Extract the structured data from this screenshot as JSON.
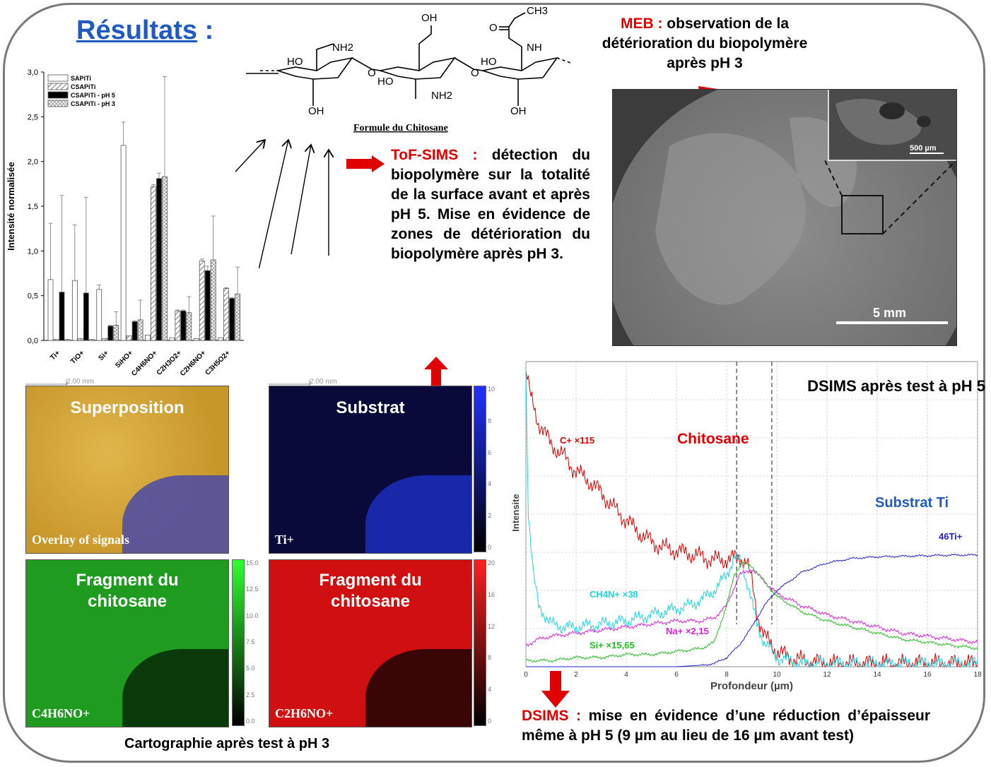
{
  "title": {
    "main": "Résultats",
    "colon": " :"
  },
  "chitosan": {
    "caption": "Formule du Chitosane",
    "groups": [
      "HO",
      "NH2",
      "OH",
      "O",
      "HO",
      "NH2",
      "OH",
      "O",
      "HO",
      "NH",
      "O",
      "CH3",
      "OH"
    ]
  },
  "tof_note": {
    "lead": "ToF-SIMS :",
    "body": " détection du biopolymère sur la totalité de la surface avant et après pH 5. Mise en évidence de zones de détérioration du biopolymère après pH 3."
  },
  "meb_note": {
    "lead": "MEB :",
    "body": " observation de la détérioration du biopolymère après pH 3"
  },
  "sem": {
    "inset_scale": "500 µm",
    "main_scale": "5 mm"
  },
  "maps": {
    "scale_text": "2.00 mm",
    "items": [
      {
        "label": "Superposition",
        "ion": "Overlay of signals"
      },
      {
        "label": "Substrat",
        "ion": "Ti+"
      },
      {
        "label_line1": "Fragment du",
        "label_line2": "chitosane",
        "ion": "C4H6NO+"
      },
      {
        "label_line1": "Fragment du",
        "label_line2": "chitosane",
        "ion": "C2H6NO+"
      }
    ],
    "colorbars": [
      {
        "ticks": [
          "10",
          "8",
          "6",
          "4",
          "2",
          "0"
        ]
      },
      {
        "ticks": [
          "15.0",
          "12.5",
          "10.0",
          "7.5",
          "5.0",
          "2.5",
          "0.0"
        ]
      },
      {
        "ticks": [
          "20",
          "16",
          "12",
          "8",
          "4",
          "0"
        ]
      }
    ],
    "caption": "Cartographie après test à pH 3"
  },
  "dsims_note": {
    "lead": "DSIMS :",
    "body": " mise en évidence d’une réduction d’épaisseur même à pH 5 (9 µm au lieu de 16 µm avant test)"
  },
  "colors": {
    "red": "#e00000",
    "blue": "#1f5bc2",
    "c": "#e00000",
    "cn": "#1ad6e6",
    "na": "#e020e0",
    "si": "#20c020",
    "ti": "#2020d0"
  },
  "chart_data": [
    {
      "type": "bar",
      "title": "",
      "xlabel": "",
      "ylabel": "Intensité normalisée",
      "ylim": [
        0,
        3.0
      ],
      "yticks": [
        "0,0",
        "0,5",
        "1,0",
        "1,5",
        "2,0",
        "2,5",
        "3,0"
      ],
      "categories": [
        "Ti+",
        "TiO+",
        "Si+",
        "SiHO+",
        "C4H6NO+",
        "C2H3O2+",
        "C2H6NO+",
        "C3H5O2+"
      ],
      "series": [
        {
          "name": "SAPiTi",
          "values": [
            0.68,
            0.67,
            0.57,
            2.18,
            0.06,
            0.03,
            0.02,
            0.03
          ],
          "err": [
            0.63,
            0.62,
            0.05,
            0.26,
            0.0,
            0.0,
            0.0,
            0.0
          ]
        },
        {
          "name": "CSAPiTi",
          "values": [
            0.01,
            0.02,
            0.02,
            0.05,
            1.72,
            0.33,
            0.89,
            0.58
          ],
          "err": [
            0.0,
            0.0,
            0.0,
            0.0,
            0.02,
            0.01,
            0.02,
            0.01
          ]
        },
        {
          "name": "CSAPiTi - pH 5",
          "values": [
            0.54,
            0.53,
            0.16,
            0.21,
            1.81,
            0.33,
            0.78,
            0.47
          ],
          "err": [
            1.08,
            1.07,
            0.01,
            0.01,
            0.06,
            0.01,
            0.05,
            0.01
          ]
        },
        {
          "name": "CSAPiTi - pH 3",
          "values": [
            0.01,
            0.01,
            0.17,
            0.23,
            1.83,
            0.31,
            0.9,
            0.52
          ],
          "err": [
            0.0,
            0.0,
            0.15,
            0.22,
            1.12,
            0.18,
            0.49,
            0.3
          ]
        }
      ],
      "legend": "top-left"
    },
    {
      "type": "line",
      "title": "DSIMS après test à pH 5",
      "xlabel": "Profondeur (µm)",
      "ylabel": "Intensite",
      "xlim": [
        0,
        18
      ],
      "xticks": [
        "0",
        "2",
        "4",
        "6",
        "8",
        "10",
        "12",
        "14",
        "16",
        "18"
      ],
      "ylim": [
        0,
        1
      ],
      "grid": true,
      "vlines": [
        8.4,
        9.8
      ],
      "annotations": {
        "chitosan": "Chitosane",
        "substrate": "Substrat Ti"
      },
      "series": [
        {
          "name": "C+ ×115",
          "color": "#e00000",
          "x": [
            0,
            0.2,
            0.5,
            1,
            1.5,
            2,
            2.5,
            3,
            3.5,
            4,
            4.5,
            5,
            5.5,
            6,
            6.5,
            7,
            7.5,
            8,
            8.5,
            8.8,
            9,
            9.2,
            9.5,
            10,
            10.5,
            11,
            12,
            14,
            16,
            18
          ],
          "y": [
            0.97,
            0.88,
            0.8,
            0.73,
            0.69,
            0.64,
            0.61,
            0.57,
            0.52,
            0.48,
            0.44,
            0.41,
            0.39,
            0.38,
            0.37,
            0.36,
            0.35,
            0.35,
            0.36,
            0.34,
            0.28,
            0.18,
            0.1,
            0.05,
            0.03,
            0.02,
            0.01,
            0.01,
            0.01,
            0.01
          ]
        },
        {
          "name": "CH4N+ ×38",
          "color": "#1ad6e6",
          "x": [
            0,
            0.1,
            0.3,
            0.5,
            1,
            1.5,
            2,
            3,
            4,
            5,
            6,
            6.5,
            7,
            7.5,
            8,
            8.3,
            8.6,
            8.9,
            9.2,
            9.5,
            10,
            10.5,
            11,
            12,
            14,
            16,
            18
          ],
          "y": [
            0.97,
            0.5,
            0.3,
            0.2,
            0.14,
            0.13,
            0.13,
            0.14,
            0.15,
            0.17,
            0.19,
            0.2,
            0.22,
            0.25,
            0.3,
            0.36,
            0.34,
            0.25,
            0.14,
            0.08,
            0.03,
            0.02,
            0.01,
            0.01,
            0.01,
            0.01,
            0.01
          ]
        },
        {
          "name": "Na+ ×2,15",
          "color": "#e020e0",
          "x": [
            0,
            0.5,
            1,
            2,
            3,
            4,
            5,
            6,
            7,
            7.5,
            8,
            8.5,
            9,
            9.5,
            10,
            11,
            12,
            13,
            14,
            15,
            16,
            17,
            18
          ],
          "y": [
            0.07,
            0.09,
            0.1,
            0.11,
            0.12,
            0.13,
            0.14,
            0.15,
            0.15,
            0.16,
            0.2,
            0.3,
            0.32,
            0.28,
            0.24,
            0.2,
            0.17,
            0.15,
            0.13,
            0.11,
            0.1,
            0.09,
            0.08
          ]
        },
        {
          "name": "Si+ ×15,65",
          "color": "#20c020",
          "x": [
            0,
            1,
            2,
            3,
            4,
            5,
            6,
            7,
            7.5,
            8,
            8.3,
            8.6,
            9,
            9.5,
            10,
            11,
            12,
            13,
            14,
            15,
            16,
            17,
            18
          ],
          "y": [
            0.02,
            0.02,
            0.03,
            0.03,
            0.04,
            0.04,
            0.05,
            0.06,
            0.08,
            0.2,
            0.3,
            0.34,
            0.33,
            0.28,
            0.23,
            0.18,
            0.15,
            0.13,
            0.11,
            0.09,
            0.08,
            0.07,
            0.06
          ]
        },
        {
          "name": "46Ti+",
          "color": "#2020d0",
          "x": [
            0,
            6,
            7,
            7.5,
            8,
            8.5,
            9,
            9.5,
            10,
            10.5,
            11,
            12,
            13,
            14,
            15,
            16,
            17,
            18
          ],
          "y": [
            0,
            0,
            0.005,
            0.01,
            0.03,
            0.07,
            0.13,
            0.2,
            0.25,
            0.28,
            0.31,
            0.34,
            0.355,
            0.36,
            0.362,
            0.364,
            0.366,
            0.366
          ]
        }
      ]
    }
  ]
}
